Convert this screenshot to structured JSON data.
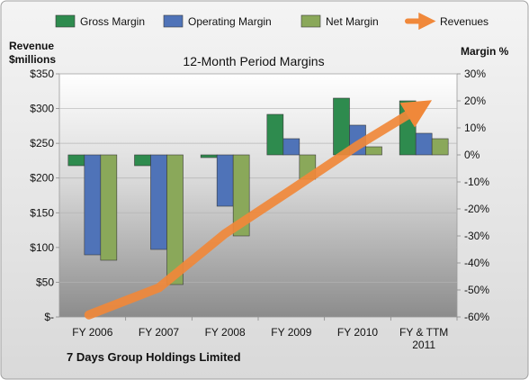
{
  "chart_data": {
    "type": "bar",
    "title": "12-Month Period Margins",
    "footer": "7 Days Group Holdings Limited",
    "ylabel_left": [
      "Revenue",
      "$millions"
    ],
    "ylabel_right": "Margin %",
    "categories": [
      [
        "FY 2006"
      ],
      [
        "FY 2007"
      ],
      [
        "FY 2008"
      ],
      [
        "FY 2009"
      ],
      [
        "FY 2010"
      ],
      [
        "FY & TTM",
        "2011"
      ]
    ],
    "left_axis": {
      "ticks": [
        "$-",
        "$50",
        "$100",
        "$150",
        "$200",
        "$250",
        "$300",
        "$350"
      ],
      "min": 0,
      "max": 350
    },
    "right_axis": {
      "ticks": [
        "-60%",
        "-50%",
        "-40%",
        "-30%",
        "-20%",
        "-10%",
        "0%",
        "10%",
        "20%",
        "30%"
      ],
      "min": -60,
      "max": 30
    },
    "series": [
      {
        "name": "Gross Margin",
        "color": "#2e8b4e",
        "axis": "right",
        "values": [
          -4,
          -4,
          -1,
          15,
          21,
          20
        ]
      },
      {
        "name": "Operating Margin",
        "color": "#4f73b8",
        "axis": "right",
        "values": [
          -37,
          -35,
          -19,
          6,
          11,
          8
        ]
      },
      {
        "name": "Net Margin",
        "color": "#8aa85a",
        "axis": "right",
        "values": [
          -39,
          -48,
          -30,
          -9,
          3,
          6
        ]
      }
    ],
    "line": {
      "name": "Revenues",
      "color": "#f0883a",
      "axis": "left",
      "values": [
        3,
        42,
        120,
        183,
        247,
        305
      ]
    },
    "legend_position": "top"
  }
}
